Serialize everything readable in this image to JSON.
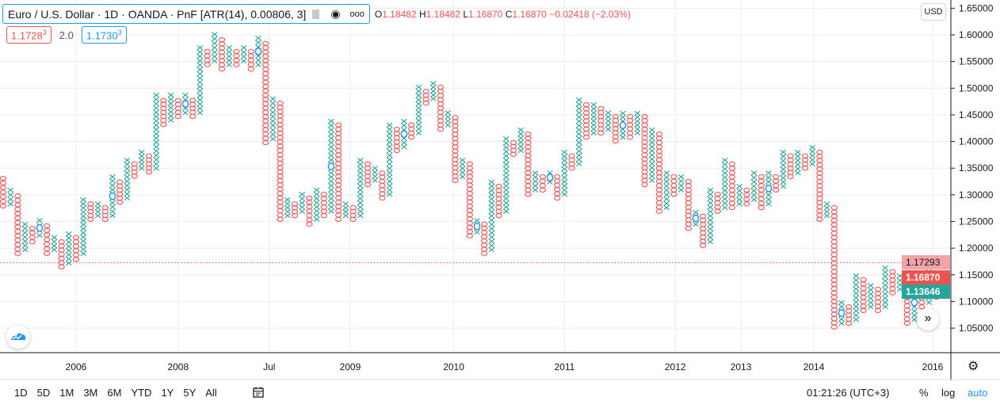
{
  "legend": {
    "title": "Euro / U.S. Dollar · 1D · OANDA · PnF [ATR(14), 0.00806, 3]",
    "open_label": "O",
    "open": "1.18482",
    "high_label": "H",
    "high": "1.18482",
    "low_label": "L",
    "low": "1.16870",
    "close_label": "C",
    "close": "1.16870",
    "change": "−0.02418 (−2.03%)",
    "sell_price": "1.1728",
    "sell_sup": "3",
    "spread": "2.0",
    "buy_price": "1.1730",
    "buy_sup": "3"
  },
  "currency": "USD",
  "price_tags": {
    "last_prev": "1.17293",
    "last": "1.16870",
    "other": "1.13646"
  },
  "colors": {
    "up": "#26a69a",
    "down": "#ef5350",
    "marker": "#2196f3",
    "grid": "#e9eef3",
    "tag_pink": "#f4a4a8"
  },
  "bottom": {
    "intervals": [
      "1D",
      "5D",
      "1M",
      "3M",
      "6M",
      "YTD",
      "1Y",
      "5Y",
      "All"
    ],
    "time": "01:21:26 (UTC+3)",
    "percent": "%",
    "log": "log",
    "auto": "auto"
  },
  "icons": {
    "eye": "eye-icon",
    "more": "more-icon",
    "calendar": "calendar-icon",
    "settings": "gear-icon",
    "scroll": "scroll-right-icon",
    "logo": "tradingview-logo"
  },
  "chart_data": {
    "type": "point-and-figure",
    "box_size": 0.00806,
    "reversal": 3,
    "ylim": [
      1.0,
      1.66
    ],
    "y_ticks": [
      "1.05000",
      "1.10000",
      "1.15000",
      "1.20000",
      "1.25000",
      "1.30000",
      "1.35000",
      "1.40000",
      "1.45000",
      "1.50000",
      "1.55000",
      "1.60000",
      "1.65000"
    ],
    "x_ticks": [
      {
        "label": "2006",
        "col": 10
      },
      {
        "label": "2008",
        "col": 24
      },
      {
        "label": "Jul",
        "col": 36.5
      },
      {
        "label": "2009",
        "col": 47.6
      },
      {
        "label": "2010",
        "col": 61.8
      },
      {
        "label": "2011",
        "col": 77
      },
      {
        "label": "2012",
        "col": 92.2
      },
      {
        "label": "2013",
        "col": 101.2
      },
      {
        "label": "2014",
        "col": 111.2
      },
      {
        "label": "2016",
        "col": 127.5
      }
    ],
    "dotted_line_price": 1.17293,
    "scroll_label": "»",
    "columns": [
      [
        "O",
        1.331,
        1.279
      ],
      [
        "X",
        1.309,
        1.283
      ],
      [
        "O",
        1.298,
        1.19
      ],
      [
        "X",
        1.245,
        1.197
      ],
      [
        "O",
        1.237,
        1.212
      ],
      [
        "X",
        1.252,
        1.224,
        1
      ],
      [
        "O",
        1.242,
        1.19
      ],
      [
        "X",
        1.22,
        1.197
      ],
      [
        "O",
        1.212,
        1.165
      ],
      [
        "X",
        1.227,
        1.172
      ],
      [
        "O",
        1.22,
        1.179
      ],
      [
        "X",
        1.291,
        1.19
      ],
      [
        "O",
        1.283,
        1.254
      ],
      [
        "X",
        1.283,
        1.261
      ],
      [
        "O",
        1.276,
        1.254
      ],
      [
        "X",
        1.334,
        1.261,
        1
      ],
      [
        "O",
        1.324,
        1.286
      ],
      [
        "X",
        1.365,
        1.294
      ],
      [
        "O",
        1.358,
        1.335
      ],
      [
        "X",
        1.38,
        1.35
      ],
      [
        "O",
        1.373,
        1.343
      ],
      [
        "X",
        1.487,
        1.35
      ],
      [
        "O",
        1.477,
        1.432
      ],
      [
        "X",
        1.487,
        1.44
      ],
      [
        "O",
        1.477,
        1.447
      ],
      [
        "X",
        1.487,
        1.454,
        1
      ],
      [
        "O",
        1.477,
        1.447
      ],
      [
        "X",
        1.576,
        1.454
      ],
      [
        "O",
        1.569,
        1.544
      ],
      [
        "X",
        1.601,
        1.551
      ],
      [
        "O",
        1.591,
        1.536
      ],
      [
        "X",
        1.576,
        1.544
      ],
      [
        "O",
        1.569,
        1.544
      ],
      [
        "X",
        1.576,
        1.551
      ],
      [
        "O",
        1.569,
        1.536
      ],
      [
        "X",
        1.594,
        1.544,
        1
      ],
      [
        "O",
        1.584,
        1.398
      ],
      [
        "X",
        1.48,
        1.405
      ],
      [
        "O",
        1.472,
        1.254
      ],
      [
        "X",
        1.291,
        1.261
      ],
      [
        "O",
        1.283,
        1.261
      ],
      [
        "X",
        1.301,
        1.269
      ],
      [
        "O",
        1.294,
        1.245
      ],
      [
        "X",
        1.309,
        1.254
      ],
      [
        "O",
        1.301,
        1.261
      ],
      [
        "X",
        1.438,
        1.269,
        1
      ],
      [
        "O",
        1.431,
        1.254
      ],
      [
        "X",
        1.283,
        1.261
      ],
      [
        "O",
        1.276,
        1.254
      ],
      [
        "X",
        1.365,
        1.261
      ],
      [
        "O",
        1.358,
        1.319
      ],
      [
        "X",
        1.35,
        1.327
      ],
      [
        "O",
        1.341,
        1.294
      ],
      [
        "X",
        1.431,
        1.301
      ],
      [
        "O",
        1.423,
        1.383
      ],
      [
        "X",
        1.438,
        1.39,
        1
      ],
      [
        "O",
        1.431,
        1.408
      ],
      [
        "X",
        1.502,
        1.416
      ],
      [
        "O",
        1.494,
        1.472
      ],
      [
        "X",
        1.509,
        1.48
      ],
      [
        "O",
        1.502,
        1.423
      ],
      [
        "X",
        1.454,
        1.431
      ],
      [
        "O",
        1.445,
        1.327
      ],
      [
        "X",
        1.365,
        1.334
      ],
      [
        "O",
        1.358,
        1.223
      ],
      [
        "X",
        1.252,
        1.23,
        1
      ],
      [
        "O",
        1.245,
        1.19
      ],
      [
        "X",
        1.324,
        1.197
      ],
      [
        "O",
        1.316,
        1.261
      ],
      [
        "X",
        1.405,
        1.269
      ],
      [
        "O",
        1.398,
        1.376
      ],
      [
        "X",
        1.422,
        1.383
      ],
      [
        "O",
        1.414,
        1.301
      ],
      [
        "X",
        1.341,
        1.309
      ],
      [
        "O",
        1.334,
        1.309
      ],
      [
        "X",
        1.341,
        1.324,
        1
      ],
      [
        "O",
        1.334,
        1.294
      ],
      [
        "X",
        1.38,
        1.301
      ],
      [
        "O",
        1.373,
        1.35
      ],
      [
        "X",
        1.478,
        1.358
      ],
      [
        "O",
        1.469,
        1.408
      ],
      [
        "X",
        1.469,
        1.416
      ],
      [
        "O",
        1.462,
        1.416
      ],
      [
        "X",
        1.454,
        1.423
      ],
      [
        "O",
        1.447,
        1.401
      ],
      [
        "X",
        1.453,
        1.408,
        1
      ],
      [
        "O",
        1.447,
        1.408
      ],
      [
        "X",
        1.453,
        1.416
      ],
      [
        "O",
        1.447,
        1.319
      ],
      [
        "X",
        1.422,
        1.327
      ],
      [
        "O",
        1.414,
        1.269
      ],
      [
        "X",
        1.341,
        1.276
      ],
      [
        "O",
        1.334,
        1.301
      ],
      [
        "X",
        1.334,
        1.309
      ],
      [
        "O",
        1.325,
        1.237
      ],
      [
        "X",
        1.267,
        1.245,
        1
      ],
      [
        "O",
        1.26,
        1.205
      ],
      [
        "X",
        1.309,
        1.212
      ],
      [
        "O",
        1.301,
        1.269
      ],
      [
        "X",
        1.365,
        1.276
      ],
      [
        "O",
        1.358,
        1.276
      ],
      [
        "X",
        1.316,
        1.283
      ],
      [
        "O",
        1.309,
        1.283
      ],
      [
        "X",
        1.341,
        1.291
      ],
      [
        "O",
        1.334,
        1.276
      ],
      [
        "X",
        1.341,
        1.283,
        1
      ],
      [
        "O",
        1.334,
        1.309
      ],
      [
        "X",
        1.38,
        1.316
      ],
      [
        "O",
        1.373,
        1.334
      ],
      [
        "X",
        1.38,
        1.341
      ],
      [
        "O",
        1.373,
        1.35
      ],
      [
        "X",
        1.389,
        1.358
      ],
      [
        "O",
        1.38,
        1.254
      ],
      [
        "X",
        1.283,
        1.261
      ],
      [
        "O",
        1.276,
        1.052
      ],
      [
        "X",
        1.098,
        1.059,
        1
      ],
      [
        "O",
        1.09,
        1.059
      ],
      [
        "X",
        1.148,
        1.066
      ],
      [
        "O",
        1.141,
        1.083
      ],
      [
        "X",
        1.13,
        1.09
      ],
      [
        "O",
        1.123,
        1.083
      ],
      [
        "X",
        1.163,
        1.09
      ],
      [
        "O",
        1.156,
        1.116
      ],
      [
        "X",
        1.148,
        1.123
      ],
      [
        "O",
        1.141,
        1.059
      ],
      [
        "X",
        1.13,
        1.066,
        1
      ],
      [
        "O",
        1.123,
        1.09
      ],
      [
        "X",
        1.156,
        1.098
      ],
      [
        "O",
        1.148,
        1.108
      ],
      [
        "X",
        1.141,
        1.116
      ]
    ]
  }
}
